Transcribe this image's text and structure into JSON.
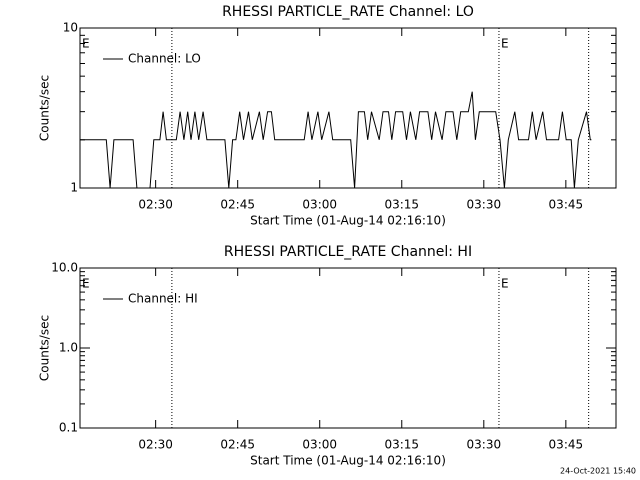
{
  "chart_data": [
    {
      "type": "line",
      "title": "RHESSI PARTICLE_RATE Channel: LO",
      "xlabel": "Start Time (01-Aug-14 02:16:10)",
      "ylabel": "Counts/sec",
      "log_y": true,
      "xlim": [
        0,
        98
      ],
      "xticks": [
        {
          "value": 13.83,
          "label": "02:30"
        },
        {
          "value": 28.83,
          "label": "02:45"
        },
        {
          "value": 43.83,
          "label": "03:00"
        },
        {
          "value": 58.83,
          "label": "03:15"
        },
        {
          "value": 73.83,
          "label": "03:30"
        },
        {
          "value": 88.83,
          "label": "03:45"
        }
      ],
      "ylim": [
        1,
        10
      ],
      "yticks": [
        {
          "value": 1,
          "label": "1"
        },
        {
          "value": 10,
          "label": "10"
        }
      ],
      "legend": "upper left",
      "vlines": [
        16.8,
        76.6,
        93
      ],
      "annotations": [
        {
          "text": "E",
          "x": 0
        },
        {
          "text": "E",
          "x": 76.6
        }
      ],
      "series": [
        {
          "name": "Channel: LO",
          "color": "#000000",
          "x": [
            0,
            4.8,
            5.5,
            6.2,
            9.7,
            10.4,
            12.8,
            13.5,
            14.6,
            15.2,
            15.8,
            17.6,
            18.3,
            19,
            19.7,
            20.3,
            21,
            21.7,
            22.5,
            23.2,
            26.5,
            27.2,
            27.9,
            28.5,
            29.2,
            29.9,
            30.8,
            31.5,
            32.8,
            33.5,
            34.3,
            35,
            35.6,
            41,
            41.7,
            42.4,
            43.5,
            44.2,
            45.5,
            46.2,
            49.5,
            50.2,
            50.9,
            52,
            52.6,
            53.3,
            54.7,
            55.4,
            56.4,
            57,
            57.7,
            59,
            59.7,
            60.4,
            61.4,
            62.1,
            63.6,
            64.3,
            65,
            66.2,
            66.9,
            68.2,
            68.9,
            69.6,
            71,
            71.7,
            72.3,
            73,
            76,
            76.8,
            77.6,
            78.3,
            79.5,
            80.2,
            82,
            82.7,
            83.4,
            84.6,
            85.3,
            87.5,
            88.2,
            88.9,
            89.8,
            90.4,
            91.1,
            92.6,
            93.3,
            93.5
          ],
          "values": [
            2,
            2,
            1,
            2,
            2,
            1,
            1,
            2,
            2,
            3,
            2,
            2,
            3,
            2,
            3,
            2,
            3,
            2,
            3,
            2,
            2,
            1,
            2,
            2,
            3,
            2,
            3,
            2,
            3,
            2,
            3,
            3,
            2,
            2,
            3,
            2,
            3,
            2,
            3,
            2,
            2,
            1,
            3,
            3,
            2,
            3,
            2,
            3,
            3,
            2,
            3,
            3,
            2,
            3,
            2,
            3,
            3,
            2,
            3,
            2,
            3,
            3,
            2,
            3,
            3,
            4,
            2,
            3,
            3,
            2,
            1,
            2,
            3,
            2,
            2,
            3,
            2,
            3,
            2,
            2,
            3,
            2,
            2,
            1,
            2,
            3,
            2,
            2
          ]
        }
      ]
    },
    {
      "type": "line",
      "title": "RHESSI PARTICLE_RATE Channel: HI",
      "xlabel": "Start Time (01-Aug-14 02:16:10)",
      "ylabel": "Counts/sec",
      "log_y": true,
      "xlim": [
        0,
        98
      ],
      "xticks": [
        {
          "value": 13.83,
          "label": "02:30"
        },
        {
          "value": 28.83,
          "label": "02:45"
        },
        {
          "value": 43.83,
          "label": "03:00"
        },
        {
          "value": 58.83,
          "label": "03:15"
        },
        {
          "value": 73.83,
          "label": "03:30"
        },
        {
          "value": 88.83,
          "label": "03:45"
        }
      ],
      "ylim": [
        0.1,
        10
      ],
      "yticks": [
        {
          "value": 0.1,
          "label": "0.1"
        },
        {
          "value": 1,
          "label": "1.0"
        },
        {
          "value": 10,
          "label": "10.0"
        }
      ],
      "legend": "upper left",
      "vlines": [
        16.8,
        76.6,
        93
      ],
      "annotations": [
        {
          "text": "E",
          "x": 0
        },
        {
          "text": "E",
          "x": 76.6
        }
      ],
      "series": [
        {
          "name": "Channel: HI",
          "color": "#000000",
          "x": [],
          "values": []
        }
      ]
    }
  ],
  "footer": "24-Oct-2021 15:40"
}
